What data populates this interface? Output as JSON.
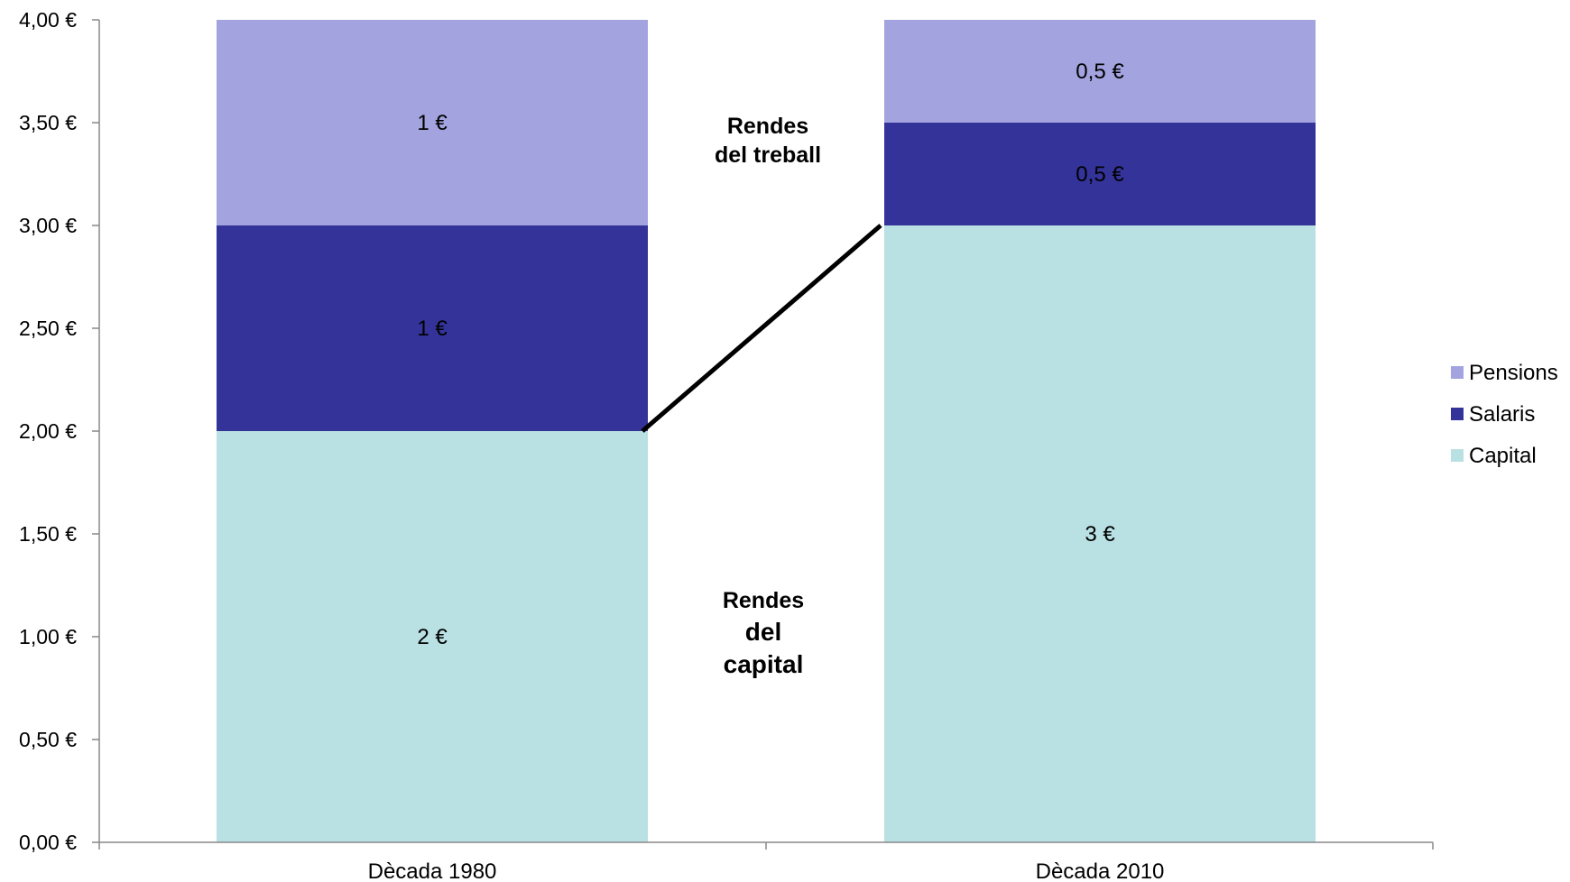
{
  "chart_data": {
    "type": "bar",
    "stacked": true,
    "categories": [
      "Dècada 1980",
      "Dècada 2010"
    ],
    "series": [
      {
        "name": "Capital",
        "values": [
          2,
          3
        ],
        "labels": [
          "2 €",
          "3 €"
        ],
        "color": "#b9e0e3"
      },
      {
        "name": "Salaris",
        "values": [
          1,
          0.5
        ],
        "labels": [
          "1 €",
          "0,5 €"
        ],
        "color": "#333399"
      },
      {
        "name": "Pensions",
        "values": [
          1,
          0.5
        ],
        "labels": [
          "1 €",
          "0,5 €"
        ],
        "color": "#a3a3df"
      }
    ],
    "ylim": [
      0,
      4
    ],
    "yticks": [
      0,
      0.5,
      1,
      1.5,
      2,
      2.5,
      3,
      3.5,
      4
    ],
    "ytick_labels": [
      "0,00 €",
      "0,50 €",
      "1,00 €",
      "1,50 €",
      "2,00 €",
      "2,50 €",
      "3,00 €",
      "3,50 €",
      "4,00 €"
    ],
    "legend_position": "right",
    "legend_order": [
      "Pensions",
      "Salaris",
      "Capital"
    ],
    "grid": false,
    "annotations": {
      "labor": [
        "Rendes",
        "del treball"
      ],
      "capital": [
        "Rendes",
        "del",
        "capital"
      ]
    },
    "connector_line": {
      "from": {
        "category": 0,
        "value": 2
      },
      "to": {
        "category": 1,
        "value": 3
      }
    }
  }
}
